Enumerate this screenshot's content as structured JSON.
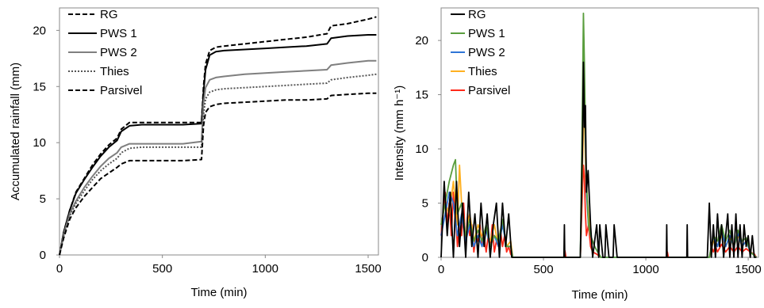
{
  "chart_data": [
    {
      "type": "line",
      "xlabel": "Time (min)",
      "ylabel": "Accumulated rainfall (mm)",
      "xlim": [
        0,
        1550
      ],
      "ylim": [
        0,
        22
      ],
      "xticks": [
        0,
        500,
        1000,
        1500
      ],
      "yticks": [
        0,
        5,
        10,
        15,
        20
      ],
      "grid": false,
      "legend_position": "top-left",
      "series": [
        {
          "name": "RG",
          "color": "#000000",
          "style": "dashed",
          "x": [
            0,
            20,
            50,
            80,
            120,
            160,
            200,
            240,
            280,
            300,
            340,
            400,
            500,
            600,
            690,
            700,
            710,
            730,
            760,
            800,
            900,
            1000,
            1100,
            1200,
            1300,
            1320,
            1400,
            1500,
            1540
          ],
          "y": [
            0,
            2.0,
            4.0,
            5.6,
            6.8,
            8.0,
            9.0,
            9.8,
            10.4,
            11.2,
            11.8,
            11.8,
            11.8,
            11.8,
            11.8,
            15.0,
            17.0,
            18.2,
            18.5,
            18.6,
            18.8,
            19.0,
            19.2,
            19.4,
            19.7,
            20.4,
            20.6,
            21.0,
            21.2
          ]
        },
        {
          "name": "PWS 1",
          "color": "#000000",
          "style": "solid",
          "x": [
            0,
            20,
            50,
            80,
            120,
            160,
            200,
            240,
            280,
            300,
            340,
            400,
            500,
            600,
            690,
            700,
            710,
            730,
            760,
            800,
            900,
            1000,
            1100,
            1200,
            1300,
            1320,
            1400,
            1500,
            1540
          ],
          "y": [
            0,
            2.0,
            4.0,
            5.5,
            6.7,
            7.8,
            8.8,
            9.6,
            10.2,
            11.0,
            11.5,
            11.6,
            11.6,
            11.6,
            11.7,
            14.5,
            16.5,
            17.8,
            18.1,
            18.2,
            18.3,
            18.4,
            18.5,
            18.6,
            18.8,
            19.3,
            19.5,
            19.6,
            19.6
          ]
        },
        {
          "name": "PWS 2",
          "color": "#7f7f7f",
          "style": "solid",
          "x": [
            0,
            20,
            50,
            80,
            120,
            160,
            200,
            240,
            280,
            300,
            340,
            400,
            500,
            600,
            690,
            700,
            710,
            730,
            760,
            800,
            900,
            1000,
            1100,
            1200,
            1300,
            1320,
            1400,
            1500,
            1540
          ],
          "y": [
            0,
            1.8,
            3.7,
            4.8,
            6.0,
            7.0,
            7.9,
            8.6,
            9.1,
            9.6,
            9.9,
            9.9,
            9.9,
            9.9,
            10.1,
            13.5,
            14.9,
            15.6,
            15.8,
            15.9,
            16.1,
            16.2,
            16.3,
            16.4,
            16.5,
            16.9,
            17.1,
            17.3,
            17.3
          ]
        },
        {
          "name": "Thies",
          "color": "#555555",
          "style": "dotted",
          "x": [
            0,
            20,
            50,
            80,
            120,
            160,
            200,
            240,
            280,
            300,
            340,
            400,
            500,
            600,
            690,
            700,
            710,
            730,
            760,
            800,
            900,
            1000,
            1100,
            1200,
            1300,
            1320,
            1400,
            1500,
            1540
          ],
          "y": [
            0,
            1.7,
            3.5,
            4.6,
            5.7,
            6.7,
            7.5,
            8.1,
            8.6,
            9.1,
            9.5,
            9.6,
            9.6,
            9.6,
            9.6,
            12.5,
            13.9,
            14.5,
            14.7,
            14.8,
            14.9,
            15.0,
            15.1,
            15.2,
            15.3,
            15.6,
            15.8,
            16.0,
            16.1
          ]
        },
        {
          "name": "Parsivel",
          "color": "#000000",
          "style": "dashed",
          "x": [
            0,
            20,
            50,
            80,
            120,
            160,
            200,
            240,
            280,
            300,
            340,
            400,
            500,
            600,
            690,
            700,
            710,
            730,
            760,
            800,
            900,
            1000,
            1100,
            1200,
            1300,
            1320,
            1400,
            1500,
            1540
          ],
          "y": [
            0,
            1.5,
            3.2,
            4.2,
            5.2,
            6.0,
            6.8,
            7.3,
            7.8,
            8.1,
            8.4,
            8.4,
            8.4,
            8.4,
            8.5,
            11.5,
            12.7,
            13.2,
            13.4,
            13.5,
            13.6,
            13.7,
            13.8,
            13.8,
            13.9,
            14.2,
            14.3,
            14.4,
            14.4
          ]
        }
      ]
    },
    {
      "type": "line",
      "xlabel": "Time (min)",
      "ylabel": "Intensity (mm h⁻¹)",
      "xlim": [
        0,
        1550
      ],
      "ylim": [
        0,
        23
      ],
      "xticks": [
        0,
        500,
        1000,
        1500
      ],
      "yticks": [
        0,
        5,
        10,
        15,
        20
      ],
      "grid": false,
      "legend_position": "top-left",
      "series": [
        {
          "name": "Parsivel",
          "color": "#ff2a1a",
          "x": [
            0,
            10,
            20,
            30,
            40,
            50,
            60,
            70,
            80,
            90,
            100,
            110,
            120,
            130,
            140,
            150,
            160,
            170,
            180,
            190,
            200,
            210,
            220,
            230,
            240,
            250,
            260,
            270,
            280,
            290,
            300,
            310,
            320,
            330,
            340,
            350,
            600,
            605,
            610,
            680,
            690,
            695,
            700,
            705,
            710,
            720,
            730,
            740,
            760,
            780,
            1100,
            1105,
            1110,
            1310,
            1320,
            1330,
            1340,
            1350,
            1370,
            1390,
            1410,
            1430,
            1450,
            1470,
            1490,
            1510,
            1530,
            1540
          ],
          "y": [
            2,
            4,
            6,
            3,
            5,
            2,
            6,
            4,
            1,
            3,
            2,
            5,
            1,
            4,
            2,
            3,
            0.5,
            2,
            1.5,
            3,
            1,
            2,
            0.5,
            2,
            1,
            3,
            0.5,
            1.5,
            1,
            2.5,
            1,
            2,
            0.5,
            1,
            0.3,
            0,
            0,
            0.6,
            0,
            0,
            6,
            8.5,
            7.5,
            4,
            2,
            3,
            1,
            0.5,
            0.3,
            0,
            0,
            0.5,
            0,
            0,
            1,
            0.5,
            1,
            0.5,
            1.2,
            0.5,
            1,
            0.5,
            1,
            0.5,
            0.8,
            0.5,
            0.3,
            0
          ]
        },
        {
          "name": "Thies",
          "color": "#ffb020",
          "x": [
            0,
            20,
            40,
            60,
            80,
            90,
            100,
            120,
            140,
            160,
            180,
            200,
            220,
            240,
            260,
            280,
            300,
            320,
            340,
            350,
            680,
            690,
            695,
            700,
            705,
            710,
            720,
            730,
            750,
            780,
            1310,
            1330,
            1350,
            1370,
            1390,
            1410,
            1430,
            1450,
            1470,
            1490,
            1510,
            1540
          ],
          "y": [
            3,
            5,
            4,
            7,
            3,
            8.5,
            5,
            2,
            4,
            1.5,
            3,
            2,
            2.5,
            1.5,
            3,
            1,
            3.5,
            1,
            1.5,
            0,
            0,
            8,
            12,
            14,
            9,
            6,
            4,
            2,
            1,
            0,
            0,
            1.5,
            1,
            2,
            1,
            1.8,
            1,
            2,
            1,
            1.5,
            0.5,
            0
          ]
        },
        {
          "name": "PWS 2",
          "color": "#2e75d6",
          "x": [
            0,
            20,
            40,
            60,
            80,
            100,
            120,
            140,
            160,
            180,
            200,
            220,
            240,
            260,
            280,
            300,
            320,
            340,
            350,
            680,
            690,
            695,
            700,
            705,
            710,
            720,
            730,
            750,
            780,
            1310,
            1330,
            1350,
            1370,
            1390,
            1410,
            1430,
            1450,
            1470,
            1490,
            1510,
            1540
          ],
          "y": [
            2,
            4,
            6,
            5,
            2,
            4,
            1.5,
            3,
            1,
            2,
            1,
            2.5,
            1,
            2,
            1,
            3,
            1,
            1,
            0,
            0,
            10,
            17,
            16,
            11,
            6,
            3,
            2,
            1,
            0,
            0,
            2,
            1,
            2.5,
            1,
            2,
            1,
            2.2,
            1,
            1.5,
            0.5,
            0
          ]
        },
        {
          "name": "PWS 1",
          "color": "#5a9e3e",
          "x": [
            0,
            20,
            40,
            60,
            70,
            80,
            100,
            120,
            140,
            160,
            180,
            200,
            220,
            240,
            260,
            280,
            300,
            320,
            340,
            350,
            680,
            690,
            695,
            700,
            705,
            710,
            720,
            730,
            750,
            780,
            1310,
            1330,
            1350,
            1370,
            1390,
            1410,
            1430,
            1450,
            1470,
            1490,
            1510,
            1540
          ],
          "y": [
            3,
            5,
            7,
            8.5,
            9,
            4,
            5,
            2,
            3.5,
            1.5,
            2.5,
            1.5,
            3,
            1,
            2,
            1.5,
            3.5,
            1,
            1,
            0,
            0,
            14,
            22.5,
            18,
            12,
            7,
            3,
            2,
            1,
            0,
            0,
            2,
            1.5,
            3,
            1.5,
            2.5,
            1,
            2.5,
            1.5,
            1.8,
            0.5,
            0
          ]
        },
        {
          "name": "RG",
          "color": "#000000",
          "x": [
            0,
            15,
            30,
            45,
            60,
            75,
            90,
            105,
            120,
            135,
            150,
            165,
            180,
            195,
            210,
            225,
            240,
            255,
            270,
            285,
            300,
            315,
            330,
            345,
            360,
            600,
            602,
            604,
            680,
            690,
            695,
            700,
            705,
            710,
            718,
            730,
            740,
            760,
            770,
            775,
            790,
            800,
            805,
            820,
            840,
            845,
            860,
            1100,
            1102,
            1104,
            1200,
            1202,
            1204,
            1300,
            1310,
            1320,
            1330,
            1340,
            1350,
            1360,
            1370,
            1380,
            1390,
            1400,
            1410,
            1420,
            1430,
            1440,
            1450,
            1460,
            1470,
            1480,
            1490,
            1500,
            1510,
            1520,
            1530,
            1540
          ],
          "y": [
            0,
            7,
            2,
            6,
            0,
            7,
            1,
            5,
            0,
            6,
            1,
            4,
            0,
            5,
            1,
            4,
            0,
            3,
            5,
            0,
            5,
            1,
            4,
            0,
            0,
            0,
            3,
            0,
            0,
            10,
            18,
            12,
            14,
            6,
            8,
            3,
            0,
            3,
            0,
            3,
            0,
            0,
            3,
            0,
            0,
            3,
            0,
            0,
            3,
            0,
            0,
            3,
            0,
            0,
            5,
            0,
            3,
            0,
            4,
            1,
            3,
            0,
            2,
            4,
            0,
            3,
            0,
            4,
            0,
            3,
            0,
            3,
            1,
            2,
            0,
            2,
            0,
            0
          ]
        }
      ],
      "legend_order": [
        "RG",
        "PWS 1",
        "PWS 2",
        "Thies",
        "Parsivel"
      ]
    }
  ]
}
